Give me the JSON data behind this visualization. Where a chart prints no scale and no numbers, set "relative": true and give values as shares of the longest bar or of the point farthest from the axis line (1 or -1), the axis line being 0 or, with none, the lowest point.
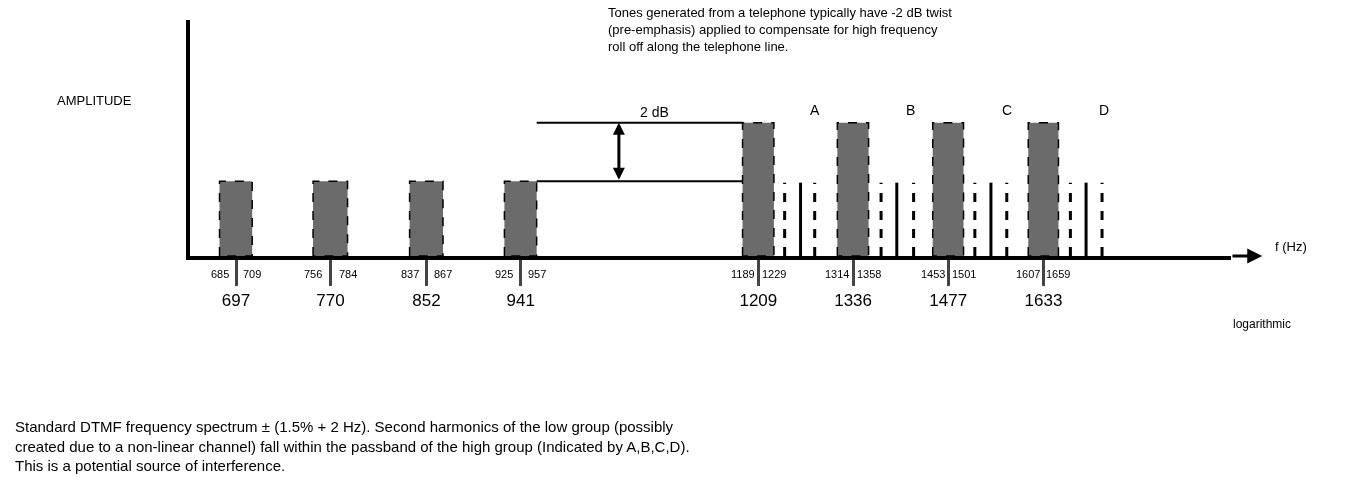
{
  "chart_data": {
    "type": "histogram",
    "relative": true,
    "log": "x",
    "ylabel": "AMPLITUDE",
    "xlabel": "f (Hz)",
    "annotations": [
      "Tones generated from a telephone typically have -2 dB twist\n(pre-emphasis) applied to compensate for high frequency\nroll off along the telephone line.",
      "logarithmic",
      "Standard DTMF frequency spectrum ± (1.5% + 2 Hz). Second harmonics of the low group (possibly\ncreated due to a non-linear channel) fall within the passband of the high group (Indicated by A,B,C,D).\nThis is a potential source of interference.",
      "A",
      "B",
      "C",
      "D",
      "2 dB",
      {
        "text": "685",
        "x": 685,
        "y": 0
      },
      {
        "text": "709",
        "x": 709,
        "y": 0
      },
      {
        "text": "756",
        "x": 756,
        "y": 0
      },
      {
        "text": "784",
        "x": 784,
        "y": 0
      },
      {
        "text": "837",
        "x": 837,
        "y": 0
      },
      {
        "text": "867",
        "x": 867,
        "y": 0
      },
      {
        "text": "925",
        "x": 925,
        "y": 0
      },
      {
        "text": "957",
        "x": 957,
        "y": 0
      },
      {
        "text": "1189",
        "x": 1189,
        "y": 0
      },
      {
        "text": "1229",
        "x": 1229,
        "y": 0
      },
      {
        "text": "1314",
        "x": 1314,
        "y": 0
      },
      {
        "text": "1358",
        "x": 1358,
        "y": 0
      },
      {
        "text": "1453",
        "x": 1453,
        "y": 0
      },
      {
        "text": "1501",
        "x": 1501,
        "y": 0
      },
      {
        "text": "1607",
        "x": 1607,
        "y": 0
      },
      {
        "text": "1659",
        "x": 1659,
        "y": 0
      }
    ],
    "bins": [
      685,
      709,
      756,
      784,
      837,
      867,
      925,
      957,
      1189,
      1229,
      1314,
      1358,
      1453,
      1501,
      1607,
      1659
    ],
    "values": [
      0.56,
      0,
      0.56,
      0,
      0.56,
      0,
      0.56,
      0,
      1,
      0,
      1,
      0,
      1,
      0,
      1
    ],
    "color": "#6b6b6b",
    "xlim": [
      664,
      1990
    ],
    "xticks": [
      697,
      770,
      852,
      941,
      1209,
      1336,
      1477,
      1633
    ],
    "series": [
      {
        "type": "line",
        "line_style": "dashed",
        "color": "#000000",
        "x": [
          1243,
          1243,
          1263,
          1283,
          1283,
          1330,
          1376,
          1376,
          1400,
          1424,
          1424,
          1470,
          1519,
          1519,
          1545,
          1571,
          1571,
          1625,
          1680,
          1680,
          1708,
          1737,
          1737
        ],
        "values": [
          0,
          0.55,
          null,
          0,
          0.55,
          null,
          0,
          0.55,
          null,
          0,
          0.55,
          null,
          0,
          0.55,
          null,
          0,
          0.55,
          null,
          0,
          0.55,
          null,
          0,
          0.55
        ]
      },
      {
        "type": "line",
        "line_style": "solid",
        "color": "#000000",
        "x": [
          1264,
          1264,
          1330,
          1399,
          1399,
          1470,
          1545,
          1545,
          1625,
          1708,
          1708
        ],
        "values": [
          0,
          0.55,
          null,
          0,
          0.55,
          null,
          0,
          0.55,
          null,
          0,
          0.55
        ]
      }
    ],
    "ref_lines": [
      {
        "axis": "y",
        "value": 1,
        "color": "#000000"
      },
      {
        "axis": "y",
        "value": 0.56,
        "color": "#000000"
      }
    ]
  }
}
